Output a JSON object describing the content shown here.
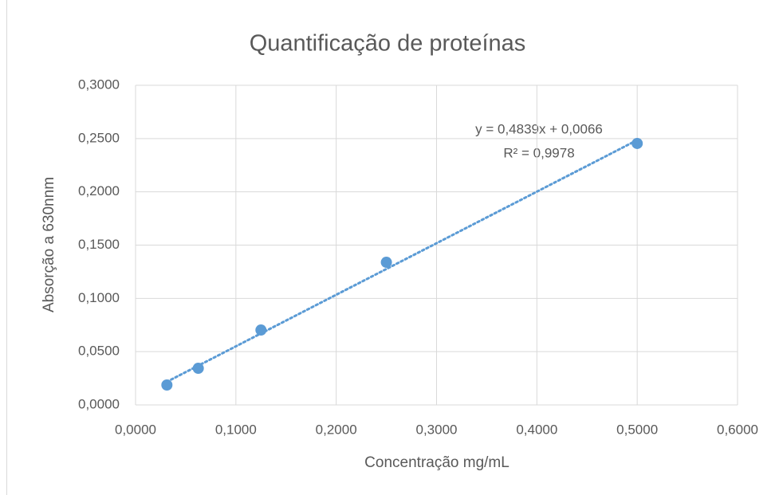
{
  "chart_data": {
    "type": "scatter",
    "title": "Quantificação de proteínas",
    "x_label": "Concentração mg/mL",
    "y_label": "Absorção a 630nnm",
    "color": "#5b9bd5",
    "x": [
      0.03125,
      0.0625,
      0.125,
      0.25,
      0.5
    ],
    "values": [
      0.0187,
      0.0344,
      0.0703,
      0.1339,
      0.2454
    ],
    "xlim": [
      0,
      0.6
    ],
    "ylim": [
      0,
      0.3
    ],
    "xticks": [
      {
        "value": 0,
        "label": "0,0000"
      },
      {
        "value": 0.1,
        "label": "0,1000"
      },
      {
        "value": 0.2,
        "label": "0,2000"
      },
      {
        "value": 0.3,
        "label": "0,3000"
      },
      {
        "value": 0.4,
        "label": "0,4000"
      },
      {
        "value": 0.5,
        "label": "0,5000"
      },
      {
        "value": 0.6,
        "label": "0,6000"
      }
    ],
    "yticks": [
      {
        "value": 0,
        "label": "0,0000"
      },
      {
        "value": 0.05,
        "label": "0,0500"
      },
      {
        "value": 0.1,
        "label": "0,1000"
      },
      {
        "value": 0.15,
        "label": "0,1500"
      },
      {
        "value": 0.2,
        "label": "0,2000"
      },
      {
        "value": 0.25,
        "label": "0,2500"
      },
      {
        "value": 0.3,
        "label": "0,3000"
      }
    ],
    "grid": true,
    "trendline": {
      "slope": 0.4839,
      "intercept": 0.0066,
      "equation": "y = 0,4839x + 0,0066",
      "r_squared_label": "R² = 0,9978"
    }
  }
}
